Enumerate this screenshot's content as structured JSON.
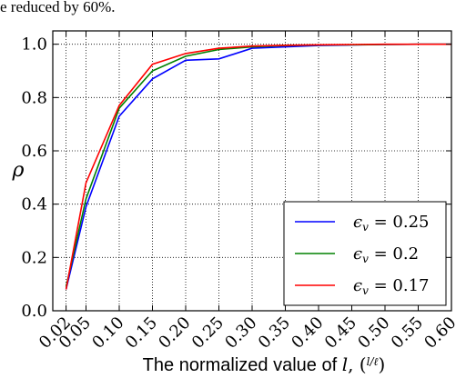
{
  "top_text": "e reduced by 60%.",
  "chart_data": {
    "type": "line",
    "x": [
      0.02,
      0.05,
      0.1,
      0.15,
      0.2,
      0.25,
      0.3,
      0.35,
      0.4,
      0.45,
      0.5,
      0.55,
      0.6
    ],
    "x_tick_labels": [
      "0.02",
      "0.05",
      "0.10",
      "0.15",
      "0.20",
      "0.25",
      "0.30",
      "0.35",
      "0.40",
      "0.45",
      "0.50",
      "0.55",
      "0.60"
    ],
    "y_tick_labels": [
      "0.0",
      "0.2",
      "0.4",
      "0.6",
      "0.8",
      "1.0"
    ],
    "xlim": [
      0,
      0.6
    ],
    "ylim": [
      0,
      1.05
    ],
    "xlabel": "The normalized value of l, (l/ℓ)",
    "ylabel": "ρ",
    "grid": true,
    "legend_position": "bottom-right",
    "series": [
      {
        "name": "εv = 0.25",
        "name_main": "ϵ",
        "name_sub": "v",
        "name_rest": " = 0.25",
        "color": "#0000ff",
        "values": [
          0.08,
          0.39,
          0.73,
          0.87,
          0.94,
          0.945,
          0.985,
          0.99,
          0.995,
          0.997,
          0.999,
          1.0,
          1.0
        ]
      },
      {
        "name": "εv = 0.2",
        "name_main": "ϵ",
        "name_sub": "v",
        "name_rest": " = 0.2",
        "color": "#008000",
        "values": [
          0.09,
          0.42,
          0.76,
          0.9,
          0.955,
          0.98,
          0.99,
          0.995,
          0.997,
          0.998,
          0.999,
          1.0,
          1.0
        ]
      },
      {
        "name": "εv = 0.17",
        "name_main": "ϵ",
        "name_sub": "v",
        "name_rest": " = 0.17",
        "color": "#ff0000",
        "values": [
          0.08,
          0.48,
          0.77,
          0.925,
          0.965,
          0.985,
          0.993,
          0.996,
          0.998,
          0.999,
          1.0,
          1.0,
          1.0
        ]
      }
    ]
  }
}
